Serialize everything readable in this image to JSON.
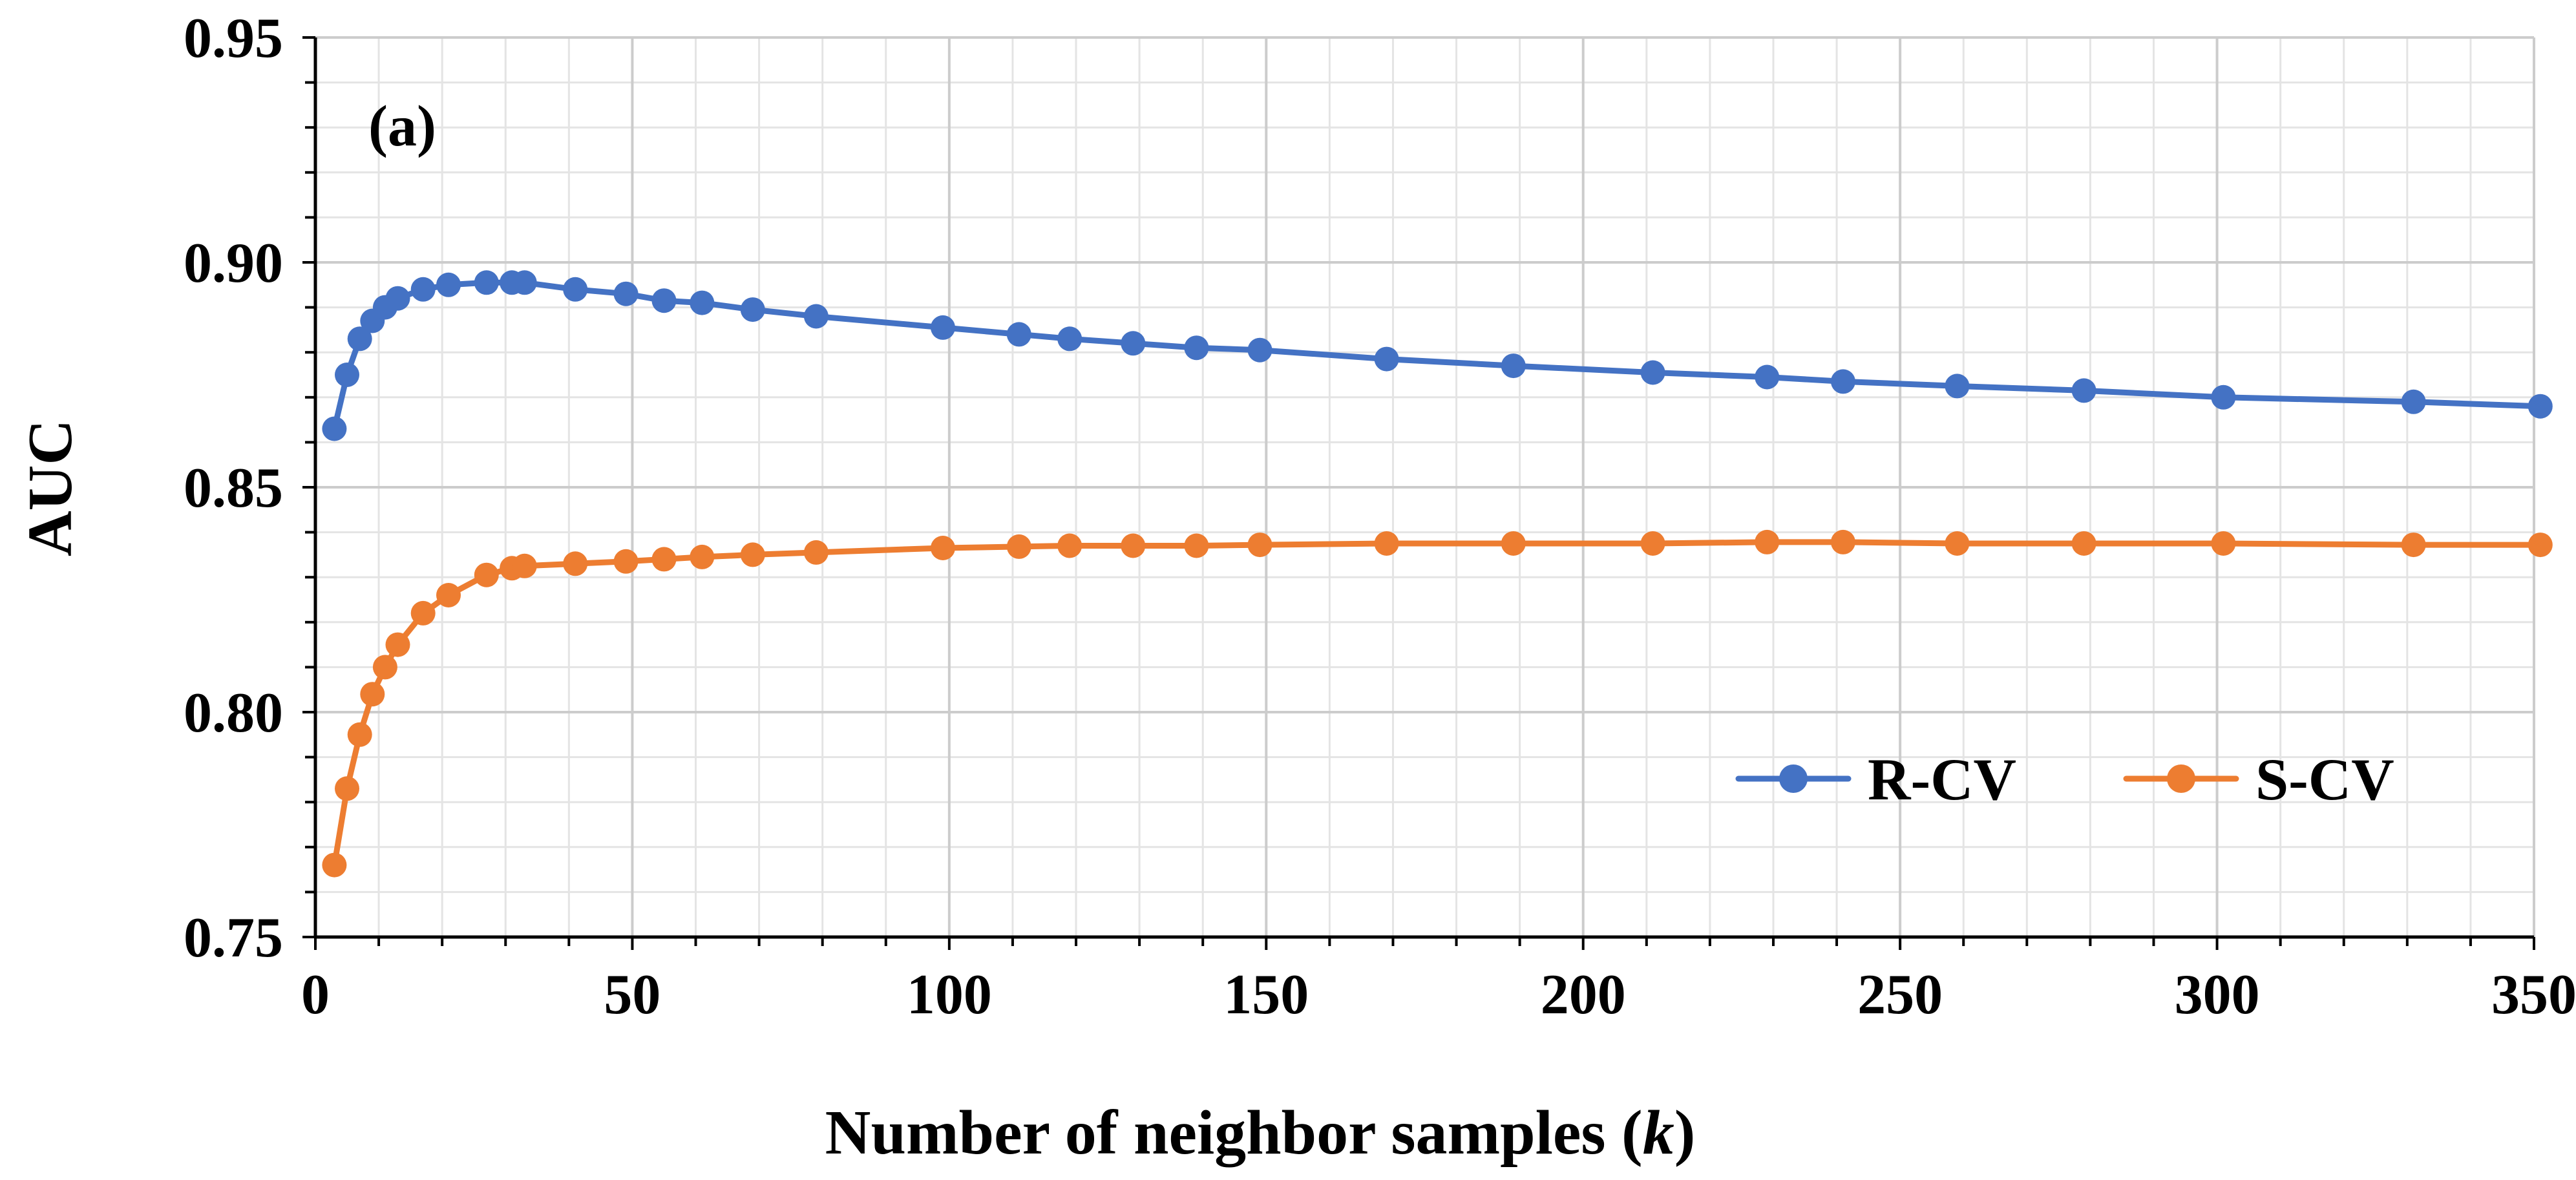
{
  "chart_data": {
    "type": "line",
    "title": "",
    "panel_label": "(a)",
    "xlabel": "Number of neighbor samples",
    "xlabel_var": "k",
    "ylabel": "AUC",
    "xlim": [
      0,
      350
    ],
    "ylim": [
      0.75,
      0.95
    ],
    "x_ticks": [
      0,
      50,
      100,
      150,
      200,
      250,
      300,
      350
    ],
    "x_tick_labels": [
      "0",
      "50",
      "100",
      "150",
      "200",
      "250",
      "300",
      "350"
    ],
    "y_ticks": [
      0.75,
      0.8,
      0.85,
      0.9,
      0.95
    ],
    "y_tick_labels": [
      "0.75",
      "0.80",
      "0.85",
      "0.90",
      "0.95"
    ],
    "grid": true,
    "legend_position": "bottom-right",
    "series": [
      {
        "name": "R-CV",
        "color": "#4472C4",
        "points": [
          [
            3,
            0.863
          ],
          [
            5,
            0.875
          ],
          [
            7,
            0.883
          ],
          [
            9,
            0.887
          ],
          [
            11,
            0.89
          ],
          [
            13,
            0.892
          ],
          [
            17,
            0.894
          ],
          [
            21,
            0.895
          ],
          [
            27,
            0.8955
          ],
          [
            31,
            0.8955
          ],
          [
            33,
            0.8955
          ],
          [
            41,
            0.894
          ],
          [
            49,
            0.893
          ],
          [
            55,
            0.8915
          ],
          [
            61,
            0.891
          ],
          [
            69,
            0.8895
          ],
          [
            79,
            0.888
          ],
          [
            99,
            0.8855
          ],
          [
            111,
            0.884
          ],
          [
            119,
            0.883
          ],
          [
            129,
            0.882
          ],
          [
            139,
            0.881
          ],
          [
            149,
            0.8805
          ],
          [
            169,
            0.8785
          ],
          [
            189,
            0.877
          ],
          [
            211,
            0.8755
          ],
          [
            229,
            0.8745
          ],
          [
            241,
            0.8735
          ],
          [
            259,
            0.8725
          ],
          [
            279,
            0.8715
          ],
          [
            301,
            0.87
          ],
          [
            331,
            0.869
          ],
          [
            351,
            0.868
          ]
        ]
      },
      {
        "name": "S-CV",
        "color": "#ED7D31",
        "points": [
          [
            3,
            0.766
          ],
          [
            5,
            0.783
          ],
          [
            7,
            0.795
          ],
          [
            9,
            0.804
          ],
          [
            11,
            0.81
          ],
          [
            13,
            0.815
          ],
          [
            17,
            0.822
          ],
          [
            21,
            0.826
          ],
          [
            27,
            0.8305
          ],
          [
            31,
            0.832
          ],
          [
            33,
            0.8325
          ],
          [
            41,
            0.833
          ],
          [
            49,
            0.8335
          ],
          [
            55,
            0.834
          ],
          [
            61,
            0.8345
          ],
          [
            69,
            0.835
          ],
          [
            79,
            0.8355
          ],
          [
            99,
            0.8365
          ],
          [
            111,
            0.8368
          ],
          [
            119,
            0.837
          ],
          [
            129,
            0.837
          ],
          [
            139,
            0.837
          ],
          [
            149,
            0.8372
          ],
          [
            169,
            0.8375
          ],
          [
            189,
            0.8375
          ],
          [
            211,
            0.8375
          ],
          [
            229,
            0.8378
          ],
          [
            241,
            0.8378
          ],
          [
            259,
            0.8375
          ],
          [
            279,
            0.8375
          ],
          [
            301,
            0.8375
          ],
          [
            331,
            0.8372
          ],
          [
            351,
            0.8372
          ]
        ]
      }
    ]
  }
}
